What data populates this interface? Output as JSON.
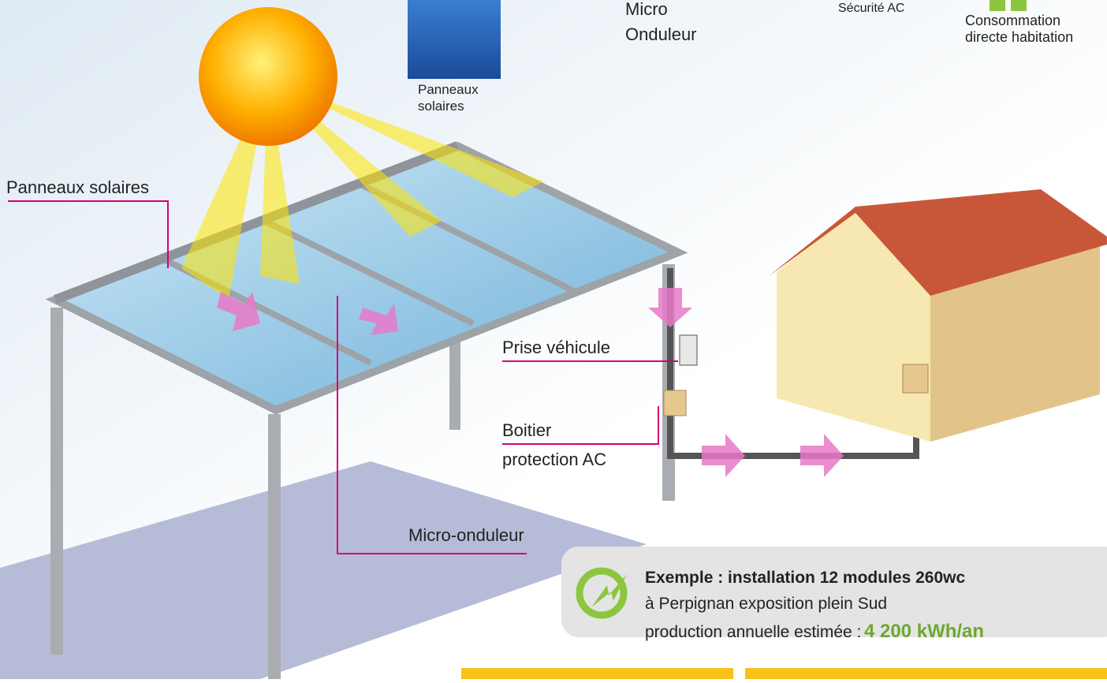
{
  "legend_top": {
    "panels": [
      "Panneaux",
      "solaires"
    ],
    "micro": [
      "Micro",
      "Onduleur"
    ],
    "security": "Sécurité AC",
    "consumption": [
      "Consommation",
      "directe habitation"
    ]
  },
  "callouts": {
    "panels": "Panneaux solaires",
    "socket": "Prise véhicule",
    "box": [
      "Boitier",
      "protection AC"
    ],
    "inverter": "Micro-onduleur"
  },
  "example": {
    "title": "Exemple : installation 12 modules 260wc",
    "line2": "à Perpignan exposition plein Sud",
    "line3": "production annuelle estimée :",
    "value": "4 200 kWh/an"
  }
}
